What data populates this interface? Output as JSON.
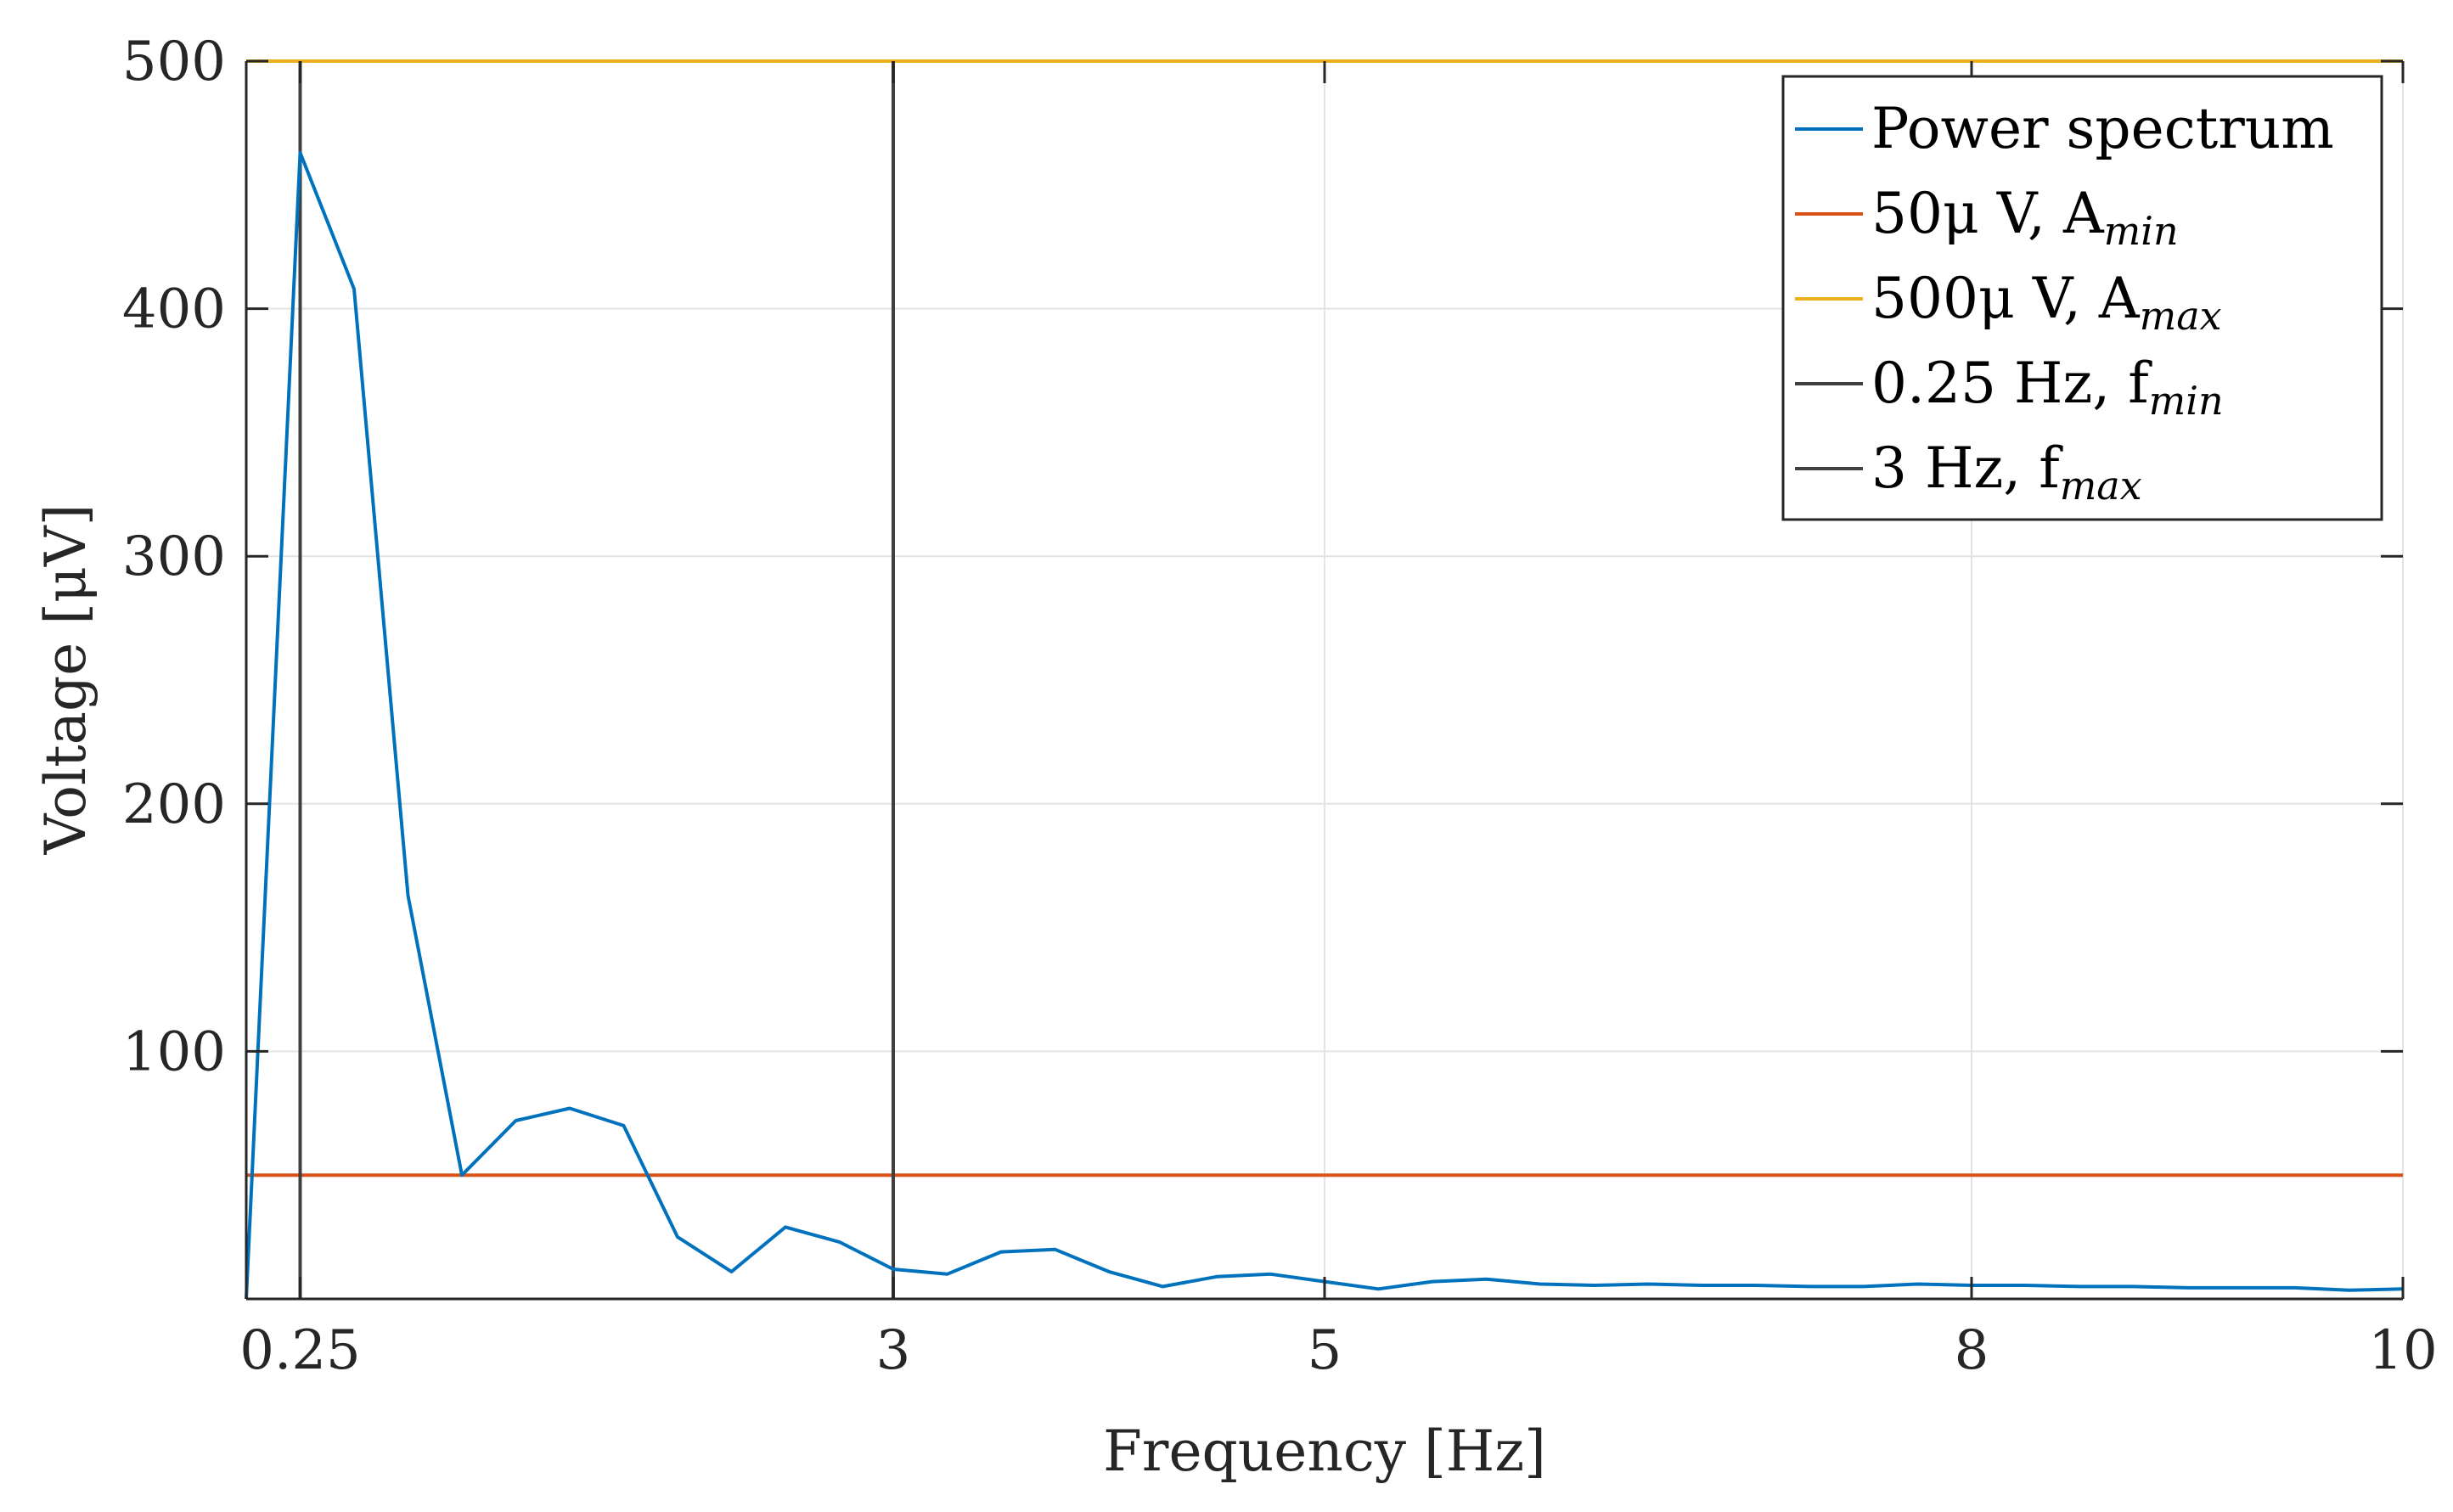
{
  "chart_data": {
    "type": "line",
    "title": "",
    "xlabel": "Frequency [Hz]",
    "ylabel": "Voltage [μV]",
    "xlim": [
      0,
      10
    ],
    "ylim": [
      0,
      500
    ],
    "xticks": [
      {
        "value": 0.25,
        "label": "0.25"
      },
      {
        "value": 3,
        "label": "3"
      },
      {
        "value": 5,
        "label": "5"
      },
      {
        "value": 8,
        "label": "8"
      },
      {
        "value": 10,
        "label": "10"
      }
    ],
    "yticks": [
      {
        "value": 100,
        "label": "100"
      },
      {
        "value": 200,
        "label": "200"
      },
      {
        "value": 300,
        "label": "300"
      },
      {
        "value": 400,
        "label": "400"
      },
      {
        "value": 500,
        "label": "500"
      }
    ],
    "grid": true,
    "legend_position": "top-right",
    "series": [
      {
        "name": "Power spectrum",
        "color": "#0072BD",
        "x": [
          0,
          0.25,
          0.5,
          0.75,
          1.0,
          1.25,
          1.5,
          1.75,
          2.0,
          2.25,
          2.5,
          2.75,
          3.0,
          3.25,
          3.5,
          3.75,
          4.0,
          4.25,
          4.5,
          4.75,
          5.0,
          5.25,
          5.5,
          5.75,
          6.0,
          6.25,
          6.5,
          6.75,
          7.0,
          7.25,
          7.5,
          7.75,
          8.0,
          8.25,
          8.5,
          8.75,
          9.0,
          9.25,
          9.5,
          9.75,
          10.0
        ],
        "y": [
          0,
          463,
          408,
          163,
          50,
          72,
          77,
          70,
          25,
          11,
          29,
          23,
          12,
          10,
          19,
          20,
          11,
          5,
          9,
          10,
          7,
          4,
          7,
          8,
          6,
          5.5,
          6,
          5.5,
          5.5,
          5,
          5,
          6,
          5.5,
          5.5,
          5,
          5,
          4.5,
          4.5,
          4.5,
          3.5,
          4
        ]
      }
    ],
    "reference_lines": [
      {
        "name": "50μ V, A",
        "subscript": "min",
        "orientation": "horizontal",
        "value": 50,
        "color": "#D95319"
      },
      {
        "name": "500μ V, A",
        "subscript": "max",
        "orientation": "horizontal",
        "value": 500,
        "color": "#EDB120"
      },
      {
        "name": "0.25 Hz, f",
        "subscript": "min",
        "orientation": "vertical",
        "value": 0.25,
        "color": "#404040"
      },
      {
        "name": "3 Hz, f",
        "subscript": "max",
        "orientation": "vertical",
        "value": 3,
        "color": "#404040"
      }
    ]
  }
}
